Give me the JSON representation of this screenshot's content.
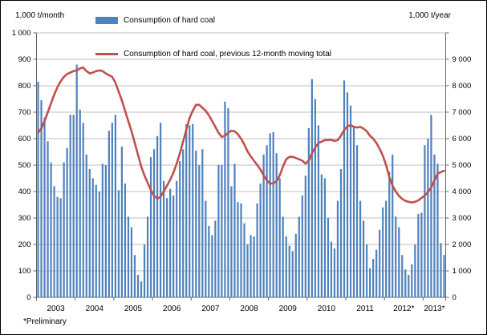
{
  "axes": {
    "left_title": "1,000 t/month",
    "right_title": "1,000 t/year",
    "left_tick_labels": [
      "0",
      "100",
      "200",
      "300",
      "400",
      "500",
      "600",
      "700",
      "800",
      "900",
      "1 000"
    ],
    "right_tick_labels": [
      "0",
      "1 000",
      "2 000",
      "3 000",
      "4 000",
      "5 000",
      "6 000",
      "7 000",
      "8 000",
      "9 000"
    ]
  },
  "legend": {
    "bar_label": "Consumption of hard coal",
    "line_label": "Consumption of hard coal, previous 12-month moving total"
  },
  "footnote": "*Preliminary",
  "colors": {
    "bar": "#4F81BD",
    "line": "#C0504D",
    "grid": "#BFBFBF",
    "axis": "#666666",
    "text": "#000000"
  },
  "chart_data": {
    "type": "bar",
    "title": "Consumption of hard coal",
    "xlabel": "",
    "ylabel_left": "1,000 t/month",
    "ylabel_right": "1,000 t/year",
    "left_axis": {
      "min": 0,
      "max": 1000,
      "step": 100
    },
    "right_axis": {
      "min": 0,
      "max": 9000,
      "step": 1000
    },
    "grid": true,
    "legend_position": "top",
    "series_names": {
      "bars": "Consumption of hard coal",
      "line": "Consumption of hard coal, previous 12-month moving total"
    },
    "years": [
      {
        "label": "2003",
        "bars": [
          815,
          745,
          680,
          590,
          510,
          420,
          380,
          375,
          510,
          565,
          690,
          690
        ],
        "line": [
          5600,
          5750,
          6000,
          6300,
          6600,
          6900,
          7150,
          7350,
          7500,
          7600,
          7650,
          7700
        ]
      },
      {
        "label": "2004",
        "bars": [
          880,
          710,
          660,
          540,
          485,
          450,
          425,
          400,
          505,
          500,
          630,
          660
        ],
        "line": [
          7720,
          7790,
          7820,
          7700,
          7620,
          7650,
          7700,
          7720,
          7700,
          7620,
          7560,
          7500
        ]
      },
      {
        "label": "2005",
        "bars": [
          690,
          405,
          570,
          430,
          305,
          265,
          160,
          85,
          60,
          200,
          305,
          530
        ],
        "line": [
          7300,
          7000,
          6700,
          6350,
          6000,
          5650,
          5250,
          4850,
          4450,
          4150,
          3900,
          3650
        ]
      },
      {
        "label": "2006",
        "bars": [
          560,
          610,
          660,
          440,
          375,
          410,
          385,
          440,
          515,
          560,
          655,
          650
        ],
        "line": [
          3450,
          3360,
          3420,
          3600,
          3800,
          4000,
          4250,
          4550,
          4900,
          5300,
          5700,
          6100
        ]
      },
      {
        "label": "2007",
        "bars": [
          655,
          555,
          500,
          560,
          365,
          270,
          235,
          290,
          500,
          500,
          740,
          715
        ],
        "line": [
          6350,
          6550,
          6550,
          6450,
          6350,
          6200,
          6000,
          5800,
          5600,
          5460,
          5500,
          5600
        ]
      },
      {
        "label": "2008",
        "bars": [
          420,
          505,
          360,
          355,
          280,
          200,
          235,
          230,
          355,
          430,
          540,
          575
        ],
        "line": [
          5670,
          5650,
          5550,
          5400,
          5200,
          4970,
          4800,
          4650,
          4500,
          4350,
          4150,
          3980
        ]
      },
      {
        "label": "2009",
        "bars": [
          620,
          625,
          545,
          450,
          305,
          230,
          195,
          175,
          240,
          305,
          385,
          460
        ],
        "line": [
          3870,
          3880,
          3950,
          4150,
          4450,
          4700,
          4780,
          4780,
          4740,
          4700,
          4650,
          4550
        ]
      },
      {
        "label": "2010",
        "bars": [
          640,
          825,
          750,
          650,
          465,
          450,
          300,
          210,
          185,
          365,
          485,
          820
        ],
        "line": [
          4650,
          4900,
          5100,
          5250,
          5300,
          5350,
          5350,
          5360,
          5320,
          5350,
          5500,
          5700
        ]
      },
      {
        "label": "2011",
        "bars": [
          775,
          725,
          645,
          575,
          365,
          290,
          200,
          110,
          145,
          180,
          255,
          340
        ],
        "line": [
          5820,
          5860,
          5800,
          5780,
          5800,
          5740,
          5650,
          5500,
          5400,
          5250,
          5050,
          4820
        ]
      },
      {
        "label": "2012*",
        "bars": [
          365,
          475,
          540,
          305,
          265,
          160,
          105,
          85,
          125,
          200,
          315,
          320
        ],
        "line": [
          4500,
          4100,
          3800,
          3600,
          3450,
          3350,
          3280,
          3250,
          3230,
          3250,
          3300,
          3380
        ]
      },
      {
        "label": "2013*",
        "bars": [
          575,
          600,
          690,
          540,
          505,
          205,
          160
        ],
        "line": [
          3460,
          3585,
          3735,
          3970,
          4210,
          4260,
          4310
        ]
      }
    ]
  }
}
